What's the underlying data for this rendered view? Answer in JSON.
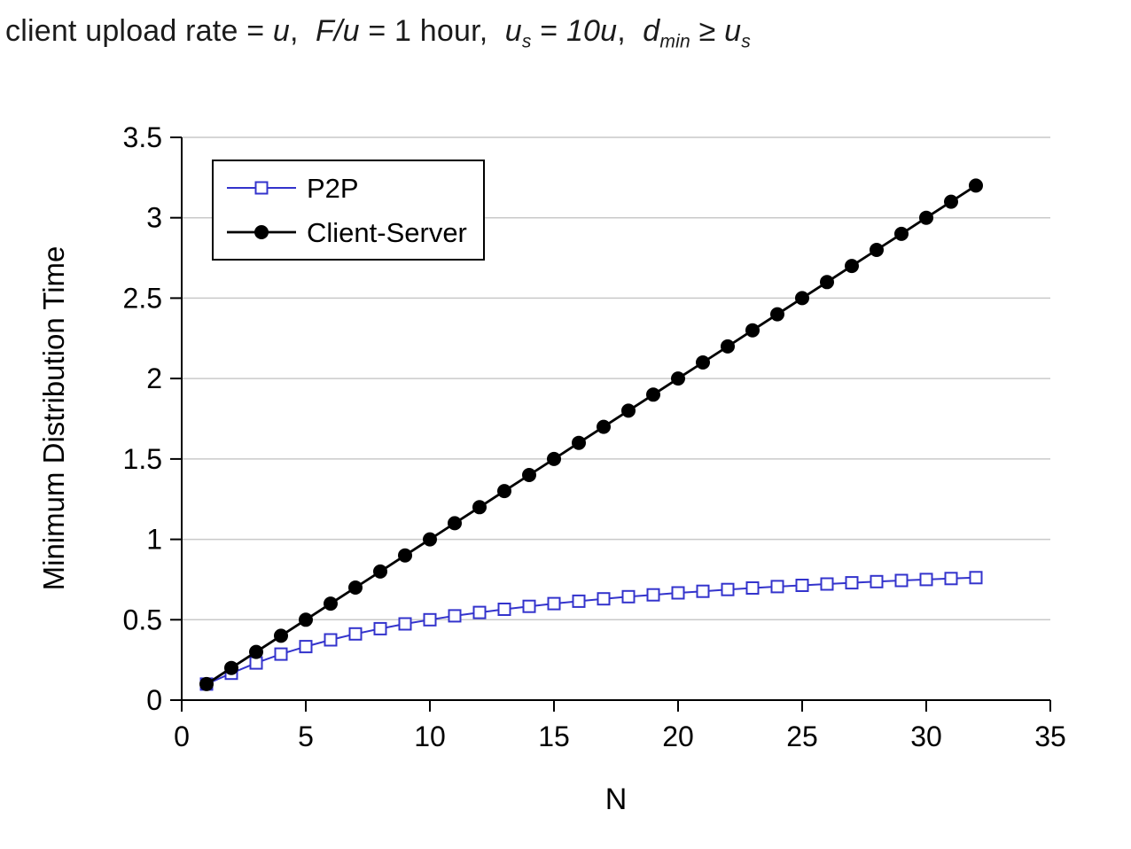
{
  "title_segments": [
    {
      "text": "client upload rate = ",
      "italic": false,
      "sub": false
    },
    {
      "text": "u",
      "italic": true,
      "sub": false
    },
    {
      "text": ",  ",
      "italic": false,
      "sub": false
    },
    {
      "text": "F/u",
      "italic": true,
      "sub": false
    },
    {
      "text": " = 1 hour,  ",
      "italic": false,
      "sub": false
    },
    {
      "text": "u",
      "italic": true,
      "sub": false
    },
    {
      "text": "s",
      "italic": true,
      "sub": true
    },
    {
      "text": " = ",
      "italic": false,
      "sub": false
    },
    {
      "text": "10u",
      "italic": true,
      "sub": false
    },
    {
      "text": ",  ",
      "italic": false,
      "sub": false
    },
    {
      "text": "d",
      "italic": true,
      "sub": false
    },
    {
      "text": "min",
      "italic": true,
      "sub": true
    },
    {
      "text": " ≥ ",
      "italic": false,
      "sub": false
    },
    {
      "text": "u",
      "italic": true,
      "sub": false
    },
    {
      "text": "s",
      "italic": true,
      "sub": true
    }
  ],
  "colors": {
    "p2p": "#3333cc",
    "client_server": "#000000",
    "grid": "#c9c9c9",
    "axis": "#000000",
    "legend_border": "#000000",
    "background": "#ffffff"
  },
  "chart_data": {
    "type": "line",
    "title": "client upload rate = u,  F/u = 1 hour,  us = 10u,  dmin ≥ us",
    "xlabel": "N",
    "ylabel": "Minimum Distribution Time",
    "xlim": [
      0,
      35
    ],
    "ylim": [
      0,
      3.5
    ],
    "x_ticks": [
      0,
      5,
      10,
      15,
      20,
      25,
      30,
      35
    ],
    "x_tick_labels": [
      "0",
      "5",
      "10",
      "15",
      "20",
      "25",
      "30",
      "35"
    ],
    "y_ticks": [
      0,
      0.5,
      1,
      1.5,
      2,
      2.5,
      3,
      3.5
    ],
    "y_tick_labels": [
      "0",
      "0.5",
      "1",
      "1.5",
      "2",
      "2.5",
      "3",
      "3.5"
    ],
    "grid": "horizontal",
    "legend_position": "top-left-inside",
    "x": [
      1,
      2,
      3,
      4,
      5,
      6,
      7,
      8,
      9,
      10,
      11,
      12,
      13,
      14,
      15,
      16,
      17,
      18,
      19,
      20,
      21,
      22,
      23,
      24,
      25,
      26,
      27,
      28,
      29,
      30,
      31,
      32
    ],
    "series": [
      {
        "name": "P2P",
        "color": "#3333cc",
        "marker": "square-open",
        "values": [
          0.1,
          0.167,
          0.231,
          0.286,
          0.333,
          0.375,
          0.412,
          0.444,
          0.474,
          0.5,
          0.524,
          0.545,
          0.565,
          0.583,
          0.6,
          0.615,
          0.63,
          0.643,
          0.655,
          0.667,
          0.677,
          0.688,
          0.697,
          0.706,
          0.714,
          0.722,
          0.73,
          0.737,
          0.744,
          0.75,
          0.756,
          0.762
        ]
      },
      {
        "name": "Client-Server",
        "color": "#000000",
        "marker": "circle-filled",
        "values": [
          0.1,
          0.2,
          0.3,
          0.4,
          0.5,
          0.6,
          0.7,
          0.8,
          0.9,
          1.0,
          1.1,
          1.2,
          1.3,
          1.4,
          1.5,
          1.6,
          1.7,
          1.8,
          1.9,
          2.0,
          2.1,
          2.2,
          2.3,
          2.4,
          2.5,
          2.6,
          2.7,
          2.8,
          2.9,
          3.0,
          3.1,
          3.2
        ]
      }
    ]
  }
}
